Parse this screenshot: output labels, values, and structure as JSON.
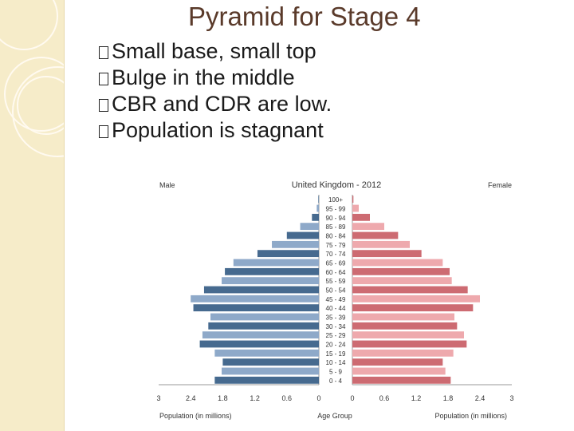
{
  "slide": {
    "title": "Pyramid for Stage 4",
    "bullets": [
      "Small base, small top",
      "Bulge in the middle",
      "CBR and CDR are low.",
      "Population is stagnant"
    ]
  },
  "chart_data": {
    "type": "bar",
    "title": "United Kingdom - 2012",
    "left_label": "Male",
    "right_label": "Female",
    "xlabel_left": "Population (in millions)",
    "xlabel_center": "Age Group",
    "xlabel_right": "Population (in millions)",
    "xlim": [
      0,
      3
    ],
    "x_ticks": [
      "3",
      "2.4",
      "1.8",
      "1.2",
      "0.6",
      "0",
      "0",
      "0.6",
      "1.2",
      "1.8",
      "2.4",
      "3"
    ],
    "categories": [
      "100+",
      "95 - 99",
      "90 - 94",
      "85 - 89",
      "80 - 84",
      "75 - 79",
      "70 - 74",
      "65 - 69",
      "60 - 64",
      "55 - 59",
      "50 - 54",
      "45 - 49",
      "40 - 44",
      "35 - 39",
      "30 - 34",
      "25 - 29",
      "20 - 24",
      "15 - 19",
      "10 - 14",
      "5 - 9",
      "0 - 4"
    ],
    "series": [
      {
        "name": "Male",
        "values": [
          0.01,
          0.04,
          0.13,
          0.35,
          0.6,
          0.88,
          1.15,
          1.6,
          1.76,
          1.82,
          2.15,
          2.4,
          2.35,
          2.03,
          2.07,
          2.18,
          2.23,
          1.95,
          1.8,
          1.82,
          1.95
        ]
      },
      {
        "name": "Female",
        "values": [
          0.02,
          0.12,
          0.33,
          0.6,
          0.86,
          1.08,
          1.3,
          1.7,
          1.83,
          1.87,
          2.17,
          2.4,
          2.27,
          1.92,
          1.97,
          2.1,
          2.15,
          1.9,
          1.7,
          1.75,
          1.85
        ]
      }
    ],
    "colors": {
      "male_dark": "#466a8f",
      "male_light": "#8ea9c9",
      "female_dark": "#cd6b72",
      "female_light": "#eea9ad"
    }
  }
}
